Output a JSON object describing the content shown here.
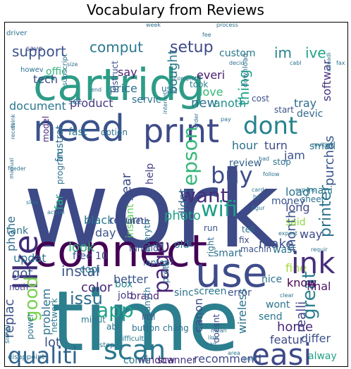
{
  "title": "Vocabulary from Reviews",
  "words": [
    {
      "text": "work",
      "color": "#3d4a87"
    },
    {
      "text": "time",
      "color": "#2c7f8e"
    },
    {
      "text": "connect",
      "color": "#440154"
    },
    {
      "text": "cartridg",
      "color": "#2d9c87"
    },
    {
      "text": "need",
      "color": "#3a538b"
    },
    {
      "text": "print",
      "color": "#3d4b89"
    },
    {
      "text": "use",
      "color": "#3e4c8a"
    },
    {
      "text": "easi",
      "color": "#3e4989"
    },
    {
      "text": "like",
      "color": "#3f2c77"
    },
    {
      "text": "scan",
      "color": "#2a788e"
    },
    {
      "text": "qualiti",
      "color": "#32648e"
    },
    {
      "text": "buy",
      "color": "#3e4c8a"
    },
    {
      "text": "dont",
      "color": "#26828e"
    },
    {
      "text": "wifi",
      "color": "#1f9e89"
    },
    {
      "text": "want",
      "color": "#472d7b"
    },
    {
      "text": "epson",
      "color": "#35b779"
    },
    {
      "text": "page",
      "color": "#482475"
    },
    {
      "text": "good",
      "color": "#7ad151"
    },
    {
      "text": "great",
      "color": "#2c7f8e"
    },
    {
      "text": "printer",
      "color": "#2c728e"
    },
    {
      "text": "app",
      "color": "#1fa187"
    },
    {
      "text": "issu",
      "color": "#2f6b8e"
    },
    {
      "text": "setup",
      "color": "#3e4989"
    },
    {
      "text": "support",
      "color": "#3b528b"
    },
    {
      "text": "comput",
      "color": "#2a788e"
    },
    {
      "text": "im",
      "color": "#26828e"
    },
    {
      "text": "ive",
      "color": "#20a486"
    },
    {
      "text": "thing",
      "color": "#1fa188"
    },
    {
      "text": "bought",
      "color": "#2a788e"
    },
    {
      "text": "purchas",
      "color": "#39558c"
    },
    {
      "text": "month",
      "color": "#3b528b"
    },
    {
      "text": "instal",
      "color": "#3a548c"
    },
    {
      "text": "color",
      "color": "#482777"
    },
    {
      "text": "problem",
      "color": "#2d708e"
    },
    {
      "text": "replac",
      "color": "#3b528b"
    },
    {
      "text": "year",
      "color": "#3d4d8a"
    },
    {
      "text": "new",
      "color": "#2c738e"
    },
    {
      "text": "document",
      "color": "#2a788e"
    },
    {
      "text": "product",
      "color": "#443a83"
    },
    {
      "text": "say",
      "color": "#481f70"
    },
    {
      "text": "price",
      "color": "#2d708e"
    },
    {
      "text": "everi",
      "color": "#481c6e"
    },
    {
      "text": "love",
      "color": "#35b779"
    },
    {
      "text": "anoth",
      "color": "#21908d"
    },
    {
      "text": "tray",
      "color": "#2e6e8e"
    },
    {
      "text": "devic",
      "color": "#31688e"
    },
    {
      "text": "hour",
      "color": "#2c718e"
    },
    {
      "text": "turn",
      "color": "#3e4a89"
    },
    {
      "text": "review",
      "color": "#34618d"
    },
    {
      "text": "didnt",
      "color": "#31688e"
    },
    {
      "text": "photo",
      "color": "#20a386"
    },
    {
      "text": "black",
      "color": "#2a778e"
    },
    {
      "text": "return",
      "color": "#3e4989"
    },
    {
      "text": "day",
      "color": "#3a548c"
    },
    {
      "text": "look",
      "color": "#2fb47c"
    },
    {
      "text": "make",
      "color": "#3b518b"
    },
    {
      "text": "wireless",
      "color": "#2d708e"
    },
    {
      "text": "canon",
      "color": "#3d4e8a"
    },
    {
      "text": "home",
      "color": "#482878"
    },
    {
      "text": "know",
      "color": "#440154"
    },
    {
      "text": "final",
      "color": "#481769"
    },
    {
      "text": "fine",
      "color": "#a2da37"
    },
    {
      "text": "phone",
      "color": "#2f6c8e"
    },
    {
      "text": "updat",
      "color": "#2b748e"
    },
    {
      "text": "got",
      "color": "#3b528b"
    },
    {
      "text": "lot",
      "color": "#3b528b"
    },
    {
      "text": "job",
      "color": "#424086"
    },
    {
      "text": "box",
      "color": "#24868e"
    },
    {
      "text": "better",
      "color": "#3b528b"
    },
    {
      "text": "featur",
      "color": "#3e4989"
    },
    {
      "text": "recommend",
      "color": "#3e4989"
    },
    {
      "text": "scanner",
      "color": "#463480"
    },
    {
      "text": "window",
      "color": "#482979"
    },
    {
      "text": "come",
      "color": "#2c728e"
    },
    {
      "text": "differ",
      "color": "#3b528b"
    },
    {
      "text": "alway",
      "color": "#20a386"
    },
    {
      "text": "mani",
      "color": "#2a788e"
    },
    {
      "text": "realli",
      "color": "#414487"
    },
    {
      "text": "far",
      "color": "#27ad81"
    },
    {
      "text": "way",
      "color": "#3e4a89"
    },
    {
      "text": "load",
      "color": "#2c728e"
    },
    {
      "text": "long",
      "color": "#3e4989"
    },
    {
      "text": "sheet",
      "color": "#2c728e"
    },
    {
      "text": "jam",
      "color": "#3b518b"
    },
    {
      "text": "small",
      "color": "#2b758e"
    },
    {
      "text": "stop",
      "color": "#2c728e"
    },
    {
      "text": "softwar",
      "color": "#46327e"
    },
    {
      "text": "ink",
      "color": "#472d7b"
    },
    {
      "text": "tech",
      "color": "#3e4989"
    },
    {
      "text": "offic",
      "color": "#31b57b"
    },
    {
      "text": "custom",
      "color": "#2a788e"
    },
    {
      "text": "fast",
      "color": "#2a788e"
    },
    {
      "text": "frustrat",
      "color": "#2d708e"
    },
    {
      "text": "model",
      "color": "#482677"
    },
    {
      "text": "set",
      "color": "#2e6f8e"
    },
    {
      "text": "servic",
      "color": "#2d708e"
    },
    {
      "text": "instruct",
      "color": "#3b528b"
    },
    {
      "text": "usb",
      "color": "#2c728e"
    },
    {
      "text": "took",
      "color": "#2c7f8e"
    },
    {
      "text": "cost",
      "color": "#3d4e8a"
    },
    {
      "text": "start",
      "color": "#3b528b"
    },
    {
      "text": "option",
      "color": "#2c728e"
    },
    {
      "text": "instant",
      "color": "#5ec962"
    },
    {
      "text": "help",
      "color": "#433e85"
    },
    {
      "text": "program",
      "color": "#2d708e"
    },
    {
      "text": "someth",
      "color": "#3b528b"
    },
    {
      "text": "run",
      "color": "#3b528b"
    },
    {
      "text": "money",
      "color": "#3a548c"
    },
    {
      "text": "said",
      "color": "#8fd744"
    },
    {
      "text": "nice",
      "color": "#2c728e"
    },
    {
      "text": "wont",
      "color": "#2c728e"
    },
    {
      "text": "send",
      "color": "#2a788e"
    },
    {
      "text": "smart",
      "color": "#2d708e"
    },
    {
      "text": "machin",
      "color": "#3b528b"
    },
    {
      "text": "fix",
      "color": "#3e4989"
    },
    {
      "text": "tell",
      "color": "#2c728e"
    },
    {
      "text": "wast",
      "color": "#2c728e"
    },
    {
      "text": "error",
      "color": "#3b528b"
    },
    {
      "text": "screen",
      "color": "#2a788e"
    },
    {
      "text": "sinc",
      "color": "#2d708e"
    },
    {
      "text": "brand",
      "color": "#482475"
    },
    {
      "text": "everyth",
      "color": "#2c728e"
    },
    {
      "text": "function",
      "color": "#3b528b"
    },
    {
      "text": "laptop",
      "color": "#2c728e"
    },
    {
      "text": "pretti",
      "color": "#2c728e"
    },
    {
      "text": "old",
      "color": "#2a788e"
    },
    {
      "text": "right",
      "color": "#2d708e"
    },
    {
      "text": "free",
      "color": "#3b528b"
    },
    {
      "text": "copi",
      "color": "#2a788e"
    },
    {
      "text": "10",
      "color": "#3e4989"
    },
    {
      "text": "tank",
      "color": "#2c728e"
    },
    {
      "text": "noth",
      "color": "#3e4989"
    },
    {
      "text": "network",
      "color": "#2a788e"
    },
    {
      "text": "abl",
      "color": "#2c728e"
    },
    {
      "text": "minut",
      "color": "#2a788e"
    },
    {
      "text": "littl",
      "color": "#3b528b"
    },
    {
      "text": "chang",
      "color": "#2c728e"
    },
    {
      "text": "doesnt",
      "color": "#3e4989"
    },
    {
      "text": "button",
      "color": "#2c728e"
    },
    {
      "text": "anyth",
      "color": "#2c728e"
    },
    {
      "text": "power",
      "color": "#2c728e"
    },
    {
      "text": "simpl",
      "color": "#2a788e"
    },
    {
      "text": "difficult",
      "color": "#2a788e"
    },
    {
      "text": "step",
      "color": "#2c728e"
    },
    {
      "text": "disappoint",
      "color": "#2c728e"
    },
    {
      "text": "driver",
      "color": "#2c728e"
    },
    {
      "text": "save",
      "color": "#3e4989"
    },
    {
      "text": "howev",
      "color": "#2c728e"
    },
    {
      "text": "subscript",
      "color": "#2c728e"
    },
    {
      "text": "size",
      "color": "#2c728e"
    },
    {
      "text": "week",
      "color": "#2c728e"
    },
    {
      "text": "fee",
      "color": "#2c728e"
    },
    {
      "text": "process",
      "color": "#2c728e"
    },
    {
      "text": "download",
      "color": "#2c728e"
    },
    {
      "text": "cabl",
      "color": "#2c728e"
    },
    {
      "text": "fax",
      "color": "#2c728e"
    },
    {
      "text": "alreadi",
      "color": "#2c728e"
    },
    {
      "text": "decid",
      "color": "#2c728e"
    },
    {
      "text": "complet",
      "color": "#2c728e"
    },
    {
      "text": "end",
      "color": "#2c728e"
    },
    {
      "text": "order",
      "color": "#2c728e"
    },
    {
      "text": "internet",
      "color": "#2c728e"
    },
    {
      "text": "pay",
      "color": "#2c728e"
    },
    {
      "text": "bad",
      "color": "#2c728e"
    },
    {
      "text": "multipl",
      "color": "#2c728e"
    },
    {
      "text": "expens",
      "color": "#2c728e"
    },
    {
      "text": "follow",
      "color": "#2c728e"
    },
    {
      "text": "figur",
      "color": "#2c728e"
    },
    {
      "text": "expect",
      "color": "#2c728e"
    },
    {
      "text": "requir",
      "color": "#2c728e"
    },
    {
      "text": "clear",
      "color": "#2c728e"
    },
    {
      "text": "star",
      "color": "#2c728e"
    },
    {
      "text": "think",
      "color": "#2c728e"
    },
    {
      "text": "feeder",
      "color": "#2c728e"
    },
    {
      "text": "manual",
      "color": "#2c728e"
    },
    {
      "text": "slow",
      "color": "#2c728e"
    },
    {
      "text": "actual",
      "color": "#2c728e"
    },
    {
      "text": "mean",
      "color": "#2c728e"
    },
    {
      "text": "line",
      "color": "#2c728e"
    },
    {
      "text": "read",
      "color": "#2c728e"
    },
    {
      "text": "area",
      "color": "#2c728e"
    },
    {
      "text": "receiv",
      "color": "#2c728e"
    },
    {
      "text": "print",
      "color": "#2c728e"
    },
    {
      "text": "card",
      "color": "#2c728e"
    },
    {
      "text": "hp",
      "color": "#2c728e"
    }
  ]
}
